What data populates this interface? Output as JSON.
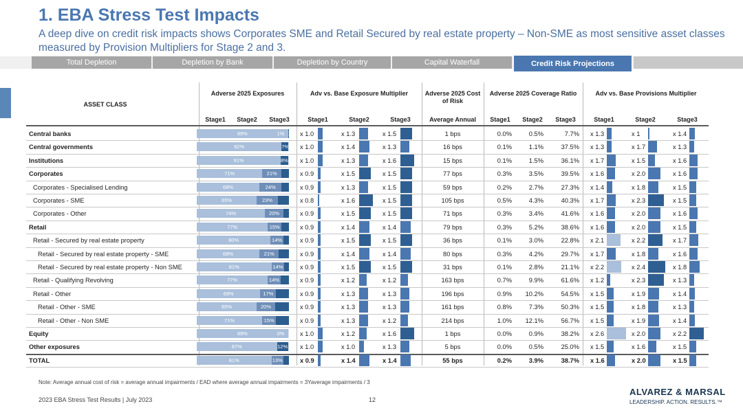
{
  "title": "1. EBA Stress Test Impacts",
  "subtitle": "A deep dive on credit risk impacts shows Corporates SME and Retail  Secured by real estate property – Non-SME as most sensitive asset classes measured by Provision Multipliers for Stage 2 and 3.",
  "tabs": [
    "Total Depletion",
    "Depletion by Bank",
    "Depletion by Country",
    "Capital Waterfall",
    "Credit Risk Projections"
  ],
  "header": {
    "asset_class": "ASSET CLASS",
    "groups": [
      "Adverse 2025 Exposures",
      "Adv vs. Base Exposure Multiplier",
      "Adverse 2025 Cost of Risk",
      "Adverse 2025 Coverage Ratio",
      "Adv vs. Base Provisions Multiplier"
    ],
    "stage_cols": [
      "Stage1",
      "Stage2",
      "Stage3"
    ],
    "avg_annual": "Average Annual"
  },
  "rows": [
    {
      "label": "Central banks",
      "bold": true,
      "indent": 0,
      "exp": [
        99,
        0,
        1
      ],
      "exp_lbl": [
        "99%",
        "",
        "1%"
      ],
      "em": [
        1.0,
        1.3,
        1.5
      ],
      "em_lbl": [
        "x 1.0",
        "x 1.3",
        "x 1.5"
      ],
      "cor": "1 bps",
      "cov": [
        "0.0%",
        "0.5%",
        "7.7%"
      ],
      "pm": [
        1.3,
        1.0,
        1.4
      ],
      "pm_lbl": [
        "x 1.3",
        "x 1",
        "x 1.4"
      ]
    },
    {
      "label": "Central governments",
      "bold": true,
      "indent": 0,
      "exp": [
        92,
        0,
        7
      ],
      "exp_lbl": [
        "92%",
        "",
        "7%"
      ],
      "em": [
        1.0,
        1.4,
        1.3
      ],
      "em_lbl": [
        "x 1.0",
        "x 1.4",
        "x 1.3"
      ],
      "cor": "16 bps",
      "cov": [
        "0.1%",
        "1.1%",
        "37.5%"
      ],
      "pm": [
        1.3,
        1.7,
        1.3
      ],
      "pm_lbl": [
        "x 1.3",
        "x 1.7",
        "x 1.3"
      ]
    },
    {
      "label": "Institutions",
      "bold": true,
      "indent": 0,
      "exp": [
        91,
        0,
        8
      ],
      "exp_lbl": [
        "91%",
        "",
        "8%"
      ],
      "em": [
        1.0,
        1.3,
        1.6
      ],
      "em_lbl": [
        "x 1.0",
        "x 1.3",
        "x 1.6"
      ],
      "cor": "15 bps",
      "cov": [
        "0.1%",
        "1.5%",
        "36.1%"
      ],
      "pm": [
        1.7,
        1.5,
        1.6
      ],
      "pm_lbl": [
        "x 1.7",
        "x 1.5",
        "x 1.6"
      ]
    },
    {
      "label": "Corporates",
      "bold": true,
      "indent": 0,
      "exp": [
        71,
        21,
        8
      ],
      "exp_lbl": [
        "71%",
        "21%",
        ""
      ],
      "em": [
        0.9,
        1.5,
        1.5
      ],
      "em_lbl": [
        "x 0.9",
        "x 1.5",
        "x 1.5"
      ],
      "cor": "77 bps",
      "cov": [
        "0.3%",
        "3.5%",
        "39.5%"
      ],
      "pm": [
        1.6,
        2.0,
        1.6
      ],
      "pm_lbl": [
        "x 1.6",
        "x 2.0",
        "x 1.6"
      ]
    },
    {
      "label": "Corporates - Specialised Lending",
      "bold": false,
      "indent": 1,
      "exp": [
        68,
        24,
        8
      ],
      "exp_lbl": [
        "68%",
        "24%",
        ""
      ],
      "em": [
        0.9,
        1.3,
        1.5
      ],
      "em_lbl": [
        "x 0.9",
        "x 1.3",
        "x 1.5"
      ],
      "cor": "59 bps",
      "cov": [
        "0.2%",
        "2.7%",
        "27.3%"
      ],
      "pm": [
        1.4,
        1.8,
        1.5
      ],
      "pm_lbl": [
        "x 1.4",
        "x 1.8",
        "x 1.5"
      ]
    },
    {
      "label": "Corporates - SME",
      "bold": false,
      "indent": 1,
      "exp": [
        65,
        23,
        12
      ],
      "exp_lbl": [
        "65%",
        "23%",
        ""
      ],
      "em": [
        0.8,
        1.6,
        1.5
      ],
      "em_lbl": [
        "x 0.8",
        "x 1.6",
        "x 1.5"
      ],
      "cor": "105 bps",
      "cov": [
        "0.5%",
        "4.3%",
        "40.3%"
      ],
      "pm": [
        1.7,
        2.3,
        1.5
      ],
      "pm_lbl": [
        "x 1.7",
        "x 2.3",
        "x 1.5"
      ]
    },
    {
      "label": "Corporates - Other",
      "bold": false,
      "indent": 1,
      "exp": [
        74,
        20,
        6
      ],
      "exp_lbl": [
        "74%",
        "20%",
        ""
      ],
      "em": [
        0.9,
        1.5,
        1.5
      ],
      "em_lbl": [
        "x 0.9",
        "x 1.5",
        "x 1.5"
      ],
      "cor": "71 bps",
      "cov": [
        "0.3%",
        "3.4%",
        "41.6%"
      ],
      "pm": [
        1.6,
        2.0,
        1.6
      ],
      "pm_lbl": [
        "x 1.6",
        "x 2.0",
        "x 1.6"
      ]
    },
    {
      "label": "Retail",
      "bold": true,
      "indent": 0,
      "exp": [
        77,
        15,
        8
      ],
      "exp_lbl": [
        "77%",
        "15%",
        ""
      ],
      "em": [
        0.9,
        1.4,
        1.4
      ],
      "em_lbl": [
        "x 0.9",
        "x 1.4",
        "x 1.4"
      ],
      "cor": "79 bps",
      "cov": [
        "0.3%",
        "5.2%",
        "38.6%"
      ],
      "pm": [
        1.6,
        2.0,
        1.5
      ],
      "pm_lbl": [
        "x 1.6",
        "x 2.0",
        "x 1.5"
      ]
    },
    {
      "label": "Retail - Secured by real estate property",
      "bold": false,
      "indent": 1,
      "exp": [
        80,
        14,
        6
      ],
      "exp_lbl": [
        "80%",
        "14%",
        ""
      ],
      "em": [
        0.9,
        1.5,
        1.5
      ],
      "em_lbl": [
        "x 0.9",
        "x 1.5",
        "x 1.5"
      ],
      "cor": "36 bps",
      "cov": [
        "0.1%",
        "3.0%",
        "22.8%"
      ],
      "pm": [
        2.1,
        2.2,
        1.7
      ],
      "pm_lbl": [
        "x 2.1",
        "x 2.2",
        "x 1.7"
      ]
    },
    {
      "label": "Retail - Secured by real estate property - SME",
      "bold": false,
      "indent": 2,
      "exp": [
        68,
        21,
        11
      ],
      "exp_lbl": [
        "68%",
        "21%",
        ""
      ],
      "em": [
        0.9,
        1.4,
        1.4
      ],
      "em_lbl": [
        "x 0.9",
        "x 1.4",
        "x 1.4"
      ],
      "cor": "80 bps",
      "cov": [
        "0.3%",
        "4.2%",
        "29.7%"
      ],
      "pm": [
        1.7,
        1.8,
        1.6
      ],
      "pm_lbl": [
        "x 1.7",
        "x 1.8",
        "x 1.6"
      ]
    },
    {
      "label": "Retail - Secured by real estate property - Non SME",
      "bold": false,
      "indent": 2,
      "exp": [
        81,
        14,
        5
      ],
      "exp_lbl": [
        "81%",
        "14%",
        ""
      ],
      "em": [
        0.9,
        1.5,
        1.5
      ],
      "em_lbl": [
        "x 0.9",
        "x 1.5",
        "x 1.5"
      ],
      "cor": "31 bps",
      "cov": [
        "0.1%",
        "2.8%",
        "21.1%"
      ],
      "pm": [
        2.2,
        2.4,
        1.8
      ],
      "pm_lbl": [
        "x 2.2",
        "x 2.4",
        "x 1.8"
      ]
    },
    {
      "label": "Retail  - Qualifying Revolving",
      "bold": false,
      "indent": 1,
      "exp": [
        77,
        14,
        9
      ],
      "exp_lbl": [
        "77%",
        "14%",
        ""
      ],
      "em": [
        0.9,
        1.2,
        1.2
      ],
      "em_lbl": [
        "x 0.9",
        "x 1.2",
        "x 1.2"
      ],
      "cor": "163 bps",
      "cov": [
        "0.7%",
        "9.9%",
        "61.6%"
      ],
      "pm": [
        1.2,
        2.3,
        1.3
      ],
      "pm_lbl": [
        "x 1.2",
        "x 2.3",
        "x 1.3"
      ]
    },
    {
      "label": "Retail - Other",
      "bold": false,
      "indent": 1,
      "exp": [
        69,
        17,
        14
      ],
      "exp_lbl": [
        "69%",
        "17%",
        ""
      ],
      "em": [
        0.9,
        1.3,
        1.3
      ],
      "em_lbl": [
        "x 0.9",
        "x 1.3",
        "x 1.3"
      ],
      "cor": "196 bps",
      "cov": [
        "0.9%",
        "10.2%",
        "54.5%"
      ],
      "pm": [
        1.5,
        1.9,
        1.4
      ],
      "pm_lbl": [
        "x 1.5",
        "x 1.9",
        "x 1.4"
      ]
    },
    {
      "label": "Retail - Other - SME",
      "bold": false,
      "indent": 2,
      "exp": [
        65,
        20,
        15
      ],
      "exp_lbl": [
        "65%",
        "20%",
        ""
      ],
      "em": [
        0.9,
        1.3,
        1.3
      ],
      "em_lbl": [
        "x 0.9",
        "x 1.3",
        "x 1.3"
      ],
      "cor": "161 bps",
      "cov": [
        "0.8%",
        "7.3%",
        "50.3%"
      ],
      "pm": [
        1.5,
        1.8,
        1.3
      ],
      "pm_lbl": [
        "x 1.5",
        "x 1.8",
        "x 1.3"
      ]
    },
    {
      "label": "Retail - Other - Non SME",
      "bold": false,
      "indent": 2,
      "exp": [
        71,
        15,
        14
      ],
      "exp_lbl": [
        "71%",
        "15%",
        ""
      ],
      "em": [
        0.9,
        1.3,
        1.2
      ],
      "em_lbl": [
        "x 0.9",
        "x 1.3",
        "x 1.2"
      ],
      "cor": "214 bps",
      "cov": [
        "1.0%",
        "12.1%",
        "56.7%"
      ],
      "pm": [
        1.5,
        1.9,
        1.4
      ],
      "pm_lbl": [
        "x 1.5",
        "x 1.9",
        "x 1.4"
      ]
    },
    {
      "label": "Equity",
      "bold": true,
      "indent": 0,
      "exp": [
        99,
        0,
        0
      ],
      "exp_lbl": [
        "99%",
        "",
        "0%"
      ],
      "em": [
        1.0,
        1.2,
        1.6
      ],
      "em_lbl": [
        "x 1.0",
        "x 1.2",
        "x 1.6"
      ],
      "cor": "1 bps",
      "cov": [
        "0.0%",
        "0.9%",
        "38.2%"
      ],
      "pm": [
        2.6,
        2.0,
        2.2
      ],
      "pm_lbl": [
        "x 2.6",
        "x 2.0",
        "x 2.2"
      ]
    },
    {
      "label": "Other exposures",
      "bold": true,
      "indent": 0,
      "exp": [
        87,
        0,
        12
      ],
      "exp_lbl": [
        "87%",
        "",
        "12%"
      ],
      "em": [
        1.0,
        1.0,
        1.3
      ],
      "em_lbl": [
        "x 1.0",
        "x 1.0",
        "x 1.3"
      ],
      "cor": "5 bps",
      "cov": [
        "0.0%",
        "0.5%",
        "25.0%"
      ],
      "pm": [
        1.5,
        1.6,
        1.5
      ],
      "pm_lbl": [
        "x 1.5",
        "x 1.6",
        "x 1.5"
      ]
    },
    {
      "label": "TOTAL",
      "bold": true,
      "indent": 0,
      "total": true,
      "exp": [
        81,
        13,
        6
      ],
      "exp_lbl": [
        "81%",
        "13%",
        ""
      ],
      "em": [
        0.9,
        1.4,
        1.4
      ],
      "em_lbl": [
        "x 0.9",
        "x 1.4",
        "x 1.4"
      ],
      "cor": "55 bps",
      "cov": [
        "0.2%",
        "3.9%",
        "38.7%"
      ],
      "pm": [
        1.6,
        2.0,
        1.5
      ],
      "pm_lbl": [
        "x 1.6",
        "x 2.0",
        "x 1.5"
      ]
    }
  ],
  "note": "Note: Average annual cost of risk = average annual impairments / EAD where average annual impairments = 3Yaverage impairments / 3",
  "footer": "2023 EBA Stress Test Results | July 2023",
  "page_number": "12",
  "logo": {
    "name": "ALVAREZ & MARSAL",
    "tagline": "LEADERSHIP. ACTION. RESULTS.™"
  },
  "colors": {
    "accent": "#4a77b0",
    "tab_grey": "#a6a6a6",
    "bar_light": "#a9bfdb",
    "bar_dark": "#2c5d8f"
  }
}
